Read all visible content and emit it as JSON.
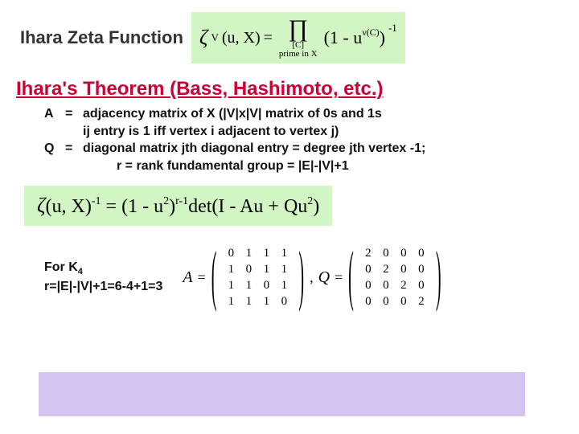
{
  "title": "Ihara Zeta Function",
  "zeta_formula": {
    "lhs_zeta": "ζ",
    "lhs_sub": "V",
    "lhs_args": "(u, X)",
    "equals": "=",
    "prod_symbol": "∏",
    "prod_sub_line1": "[C]",
    "prod_sub_line2": "prime in X",
    "term_open": "(",
    "term_body": "1 - u",
    "term_exp": "ν(C)",
    "term_close": ")",
    "outer_exp": "-1",
    "bg_color": "#d2f5c4"
  },
  "theorem_title": "Ihara's Theorem (Bass, Hashimoto, etc.)",
  "theorem_title_color": "#cc0033",
  "defs": {
    "A_sym": "A",
    "A_eq": "=",
    "A_line1": "adjacency matrix of X     (|V|x|V| matrix of 0s and 1s",
    "A_line2": "ij entry is 1 iff vertex i adjacent to vertex j)",
    "Q_sym": "Q",
    "Q_eq": "=",
    "Q_line1": "diagonal matrix jth diagonal entry = degree jth vertex -1;",
    "r_line": "r = rank fundamental group = |E|-|V|+1"
  },
  "det_formula": {
    "text_lhs": "ζ",
    "lhs_args": "(u, X)",
    "lhs_exp": "-1",
    "equals": "=",
    "factor": "(1 - u",
    "factor_exp": "2",
    "factor_close": ")",
    "r_exp": "r-1",
    "det": "det(I - Au + Qu",
    "qu_exp": "2",
    "tail": ")",
    "bg_color": "#d2f5c4"
  },
  "k4": {
    "line1": "For K",
    "k4_sub": "4",
    "line2": "r=|E|-|V|+1=6-4+1=3",
    "A_label": "A",
    "eq": "=",
    "A_matrix": [
      [
        "0",
        "1",
        "1",
        "1"
      ],
      [
        "1",
        "0",
        "1",
        "1"
      ],
      [
        "1",
        "1",
        "0",
        "1"
      ],
      [
        "1",
        "1",
        "1",
        "0"
      ]
    ],
    "comma": ",",
    "Q_label": "Q",
    "Q_matrix": [
      [
        "2",
        "0",
        "0",
        "0"
      ],
      [
        "0",
        "2",
        "0",
        "0"
      ],
      [
        "0",
        "0",
        "2",
        "0"
      ],
      [
        "0",
        "0",
        "0",
        "2"
      ]
    ]
  },
  "purple_color": "#d4c5f0"
}
